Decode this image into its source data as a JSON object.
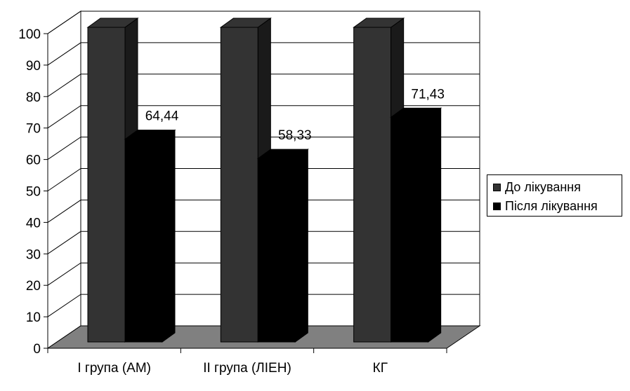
{
  "chart_data": {
    "type": "bar",
    "three_d": true,
    "categories": [
      "I група (АМ)",
      "II група (ЛІЕН)",
      "КГ"
    ],
    "series": [
      {
        "name": "До лікування",
        "values": [
          100,
          100,
          100
        ],
        "color": "#333333"
      },
      {
        "name": "Після лікування",
        "values": [
          64.44,
          58.33,
          71.43
        ],
        "color": "#000000"
      }
    ],
    "data_labels": {
      "series_index": 1,
      "texts": [
        "64,44",
        "58,33",
        "71,43"
      ]
    },
    "ylim": [
      0,
      100
    ],
    "yticks": [
      "0",
      "10",
      "20",
      "30",
      "40",
      "50",
      "60",
      "70",
      "80",
      "90",
      "100"
    ],
    "grid": true,
    "floor_color": "#808080",
    "legend_position": "right"
  }
}
